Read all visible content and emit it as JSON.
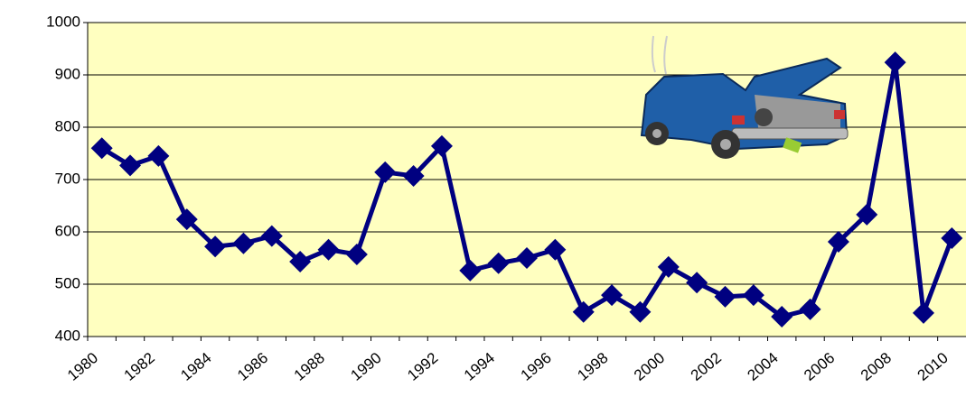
{
  "chart_data": {
    "type": "line",
    "categories": [
      "1980",
      null,
      "1982",
      null,
      "1984",
      null,
      "1986",
      null,
      "1988",
      null,
      "1990",
      null,
      "1992",
      null,
      "1994",
      null,
      "1996",
      null,
      "1998",
      null,
      "2000",
      null,
      "2002",
      null,
      "2004",
      null,
      "2006",
      null,
      "2008",
      null,
      "2010"
    ],
    "values": [
      760,
      727,
      745,
      624,
      572,
      578,
      592,
      543,
      566,
      557,
      714,
      707,
      764,
      526,
      540,
      550,
      566,
      447,
      479,
      447,
      533,
      503,
      476,
      479,
      438,
      452,
      581,
      633,
      924,
      445,
      588
    ],
    "color": "#000080",
    "ylim": [
      400,
      1000
    ],
    "yticks": [
      400,
      500,
      600,
      700,
      800,
      900,
      1000
    ],
    "grid": true
  }
}
